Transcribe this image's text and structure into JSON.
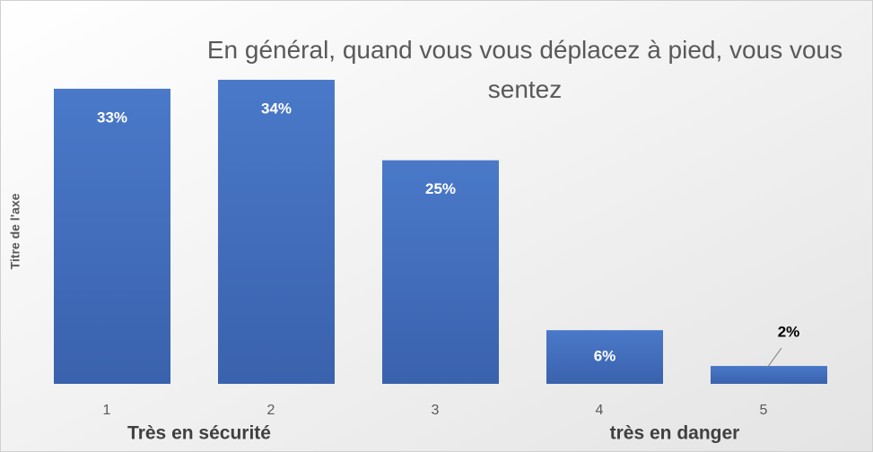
{
  "chart_data": {
    "type": "bar",
    "title": "En général, quand vous vous déplacez à pied, vous vous sentez",
    "y_axis_label": "Titre de l'axe",
    "categories": [
      "1",
      "2",
      "3",
      "4",
      "5"
    ],
    "values": [
      33,
      34,
      25,
      6,
      2
    ],
    "value_labels": [
      "33%",
      "34%",
      "25%",
      "6%",
      "2%"
    ],
    "color": "#4472c4",
    "ylim": [
      0,
      35
    ],
    "annotations": [
      "Très en sécurité",
      "très en danger"
    ]
  }
}
